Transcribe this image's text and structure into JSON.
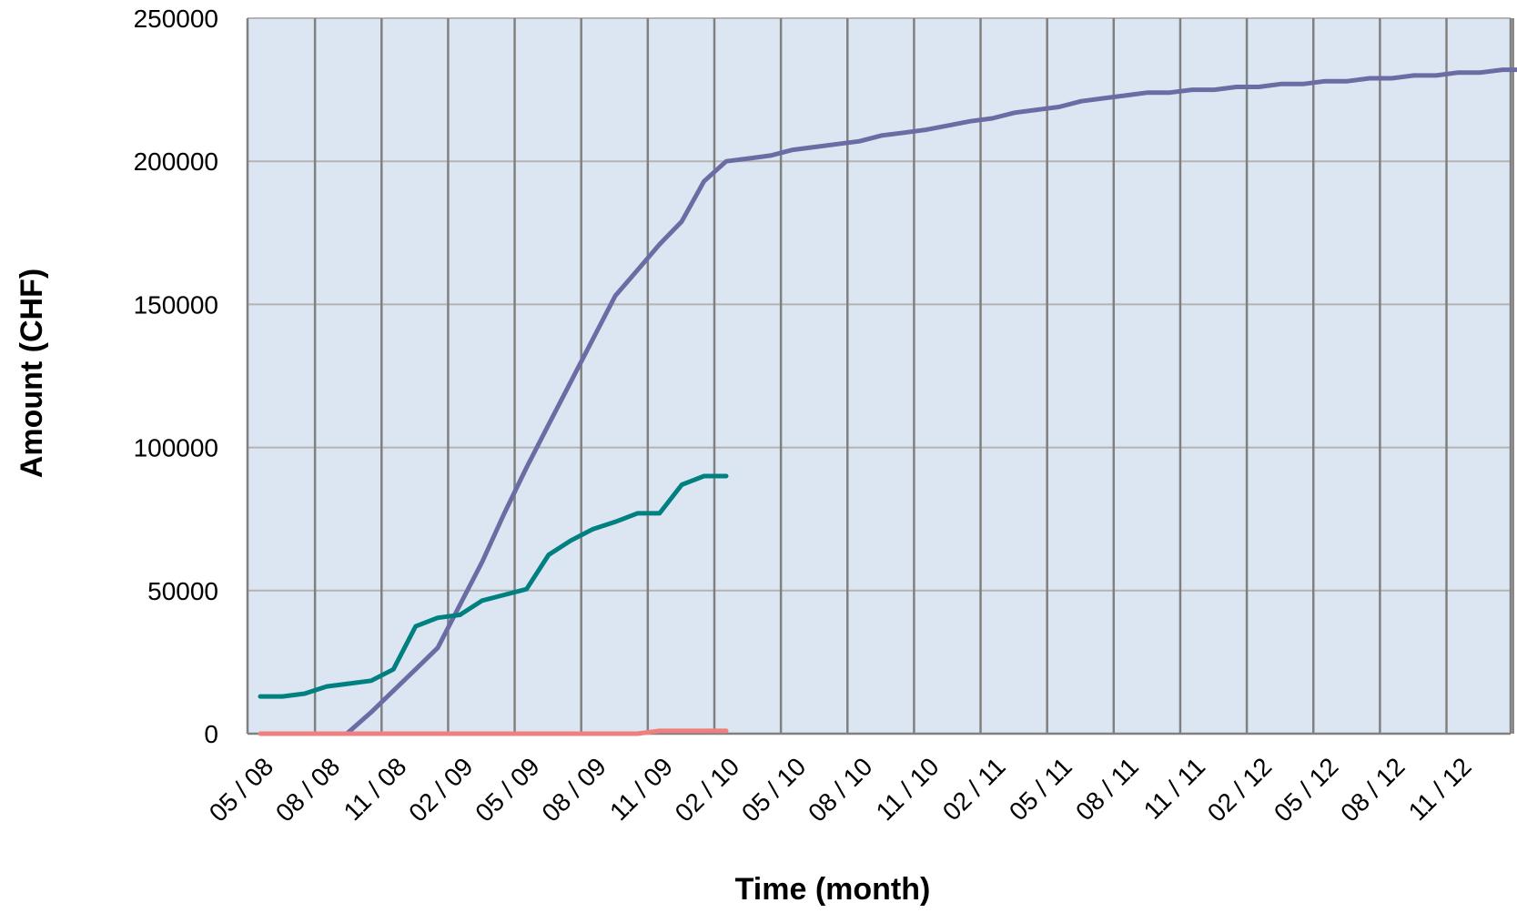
{
  "chart_data": {
    "type": "line",
    "xlabel": "Time (month)",
    "ylabel": "Amount (CHF)",
    "ylim": [
      0,
      250000
    ],
    "y_ticks": [
      "0",
      "50000",
      "100000",
      "150000",
      "200000",
      "250000"
    ],
    "x_ticks": [
      "05 / 08",
      "08 / 08",
      "11 / 08",
      "02 / 09",
      "05 / 09",
      "08 / 09",
      "11 / 09",
      "02 / 10",
      "05 / 10",
      "08 / 10",
      "11 / 10",
      "02 / 11",
      "05 / 11",
      "08 / 11",
      "11 / 11",
      "02 / 12",
      "05 / 12",
      "08 / 12",
      "11 / 12"
    ],
    "grid": true,
    "legend": "none",
    "plot_background": "#dce6f2",
    "series": [
      {
        "color": "#6b6ca3",
        "x": [
          3.9,
          5,
          6,
          7,
          8,
          9,
          10,
          11,
          12,
          13,
          14,
          15,
          16,
          17,
          18,
          19,
          20,
          21,
          22,
          23,
          24,
          25,
          26,
          27,
          28,
          29,
          30,
          31,
          32,
          33,
          34,
          35,
          36,
          37,
          38,
          39,
          40,
          41,
          42,
          43,
          44,
          45,
          46,
          47,
          48,
          49,
          50,
          51,
          52,
          53,
          54,
          55,
          56,
          57,
          58
        ],
        "values": [
          0,
          7500,
          15000,
          22500,
          30000,
          45000,
          60000,
          77000,
          93000,
          108000,
          123000,
          138000,
          153000,
          162000,
          171000,
          179000,
          193000,
          200000,
          201000,
          202000,
          204000,
          205000,
          206000,
          207000,
          209000,
          210000,
          211000,
          212500,
          214000,
          215000,
          217000,
          218000,
          219000,
          221000,
          222000,
          223000,
          224000,
          224000,
          225000,
          225000,
          226000,
          226000,
          227000,
          227000,
          228000,
          228000,
          229000,
          229000,
          230000,
          230000,
          231000,
          231000,
          232000,
          232000,
          232000
        ]
      },
      {
        "color": "#008080",
        "x": [
          0,
          1,
          2,
          3,
          4,
          5,
          6,
          7,
          8,
          9,
          10,
          11,
          12,
          13,
          14,
          15,
          16,
          17,
          18,
          19,
          20,
          21
        ],
        "values": [
          13000,
          13000,
          14000,
          16500,
          17500,
          18500,
          22500,
          37500,
          40500,
          41500,
          46500,
          48500,
          50500,
          62500,
          67500,
          71500,
          74000,
          77000,
          77000,
          87000,
          90000,
          90000
        ]
      },
      {
        "color": "#f08080",
        "x": [
          0,
          17,
          18,
          19,
          20,
          21
        ],
        "values": [
          0,
          0,
          1000,
          1000,
          1000,
          1000
        ]
      }
    ]
  }
}
